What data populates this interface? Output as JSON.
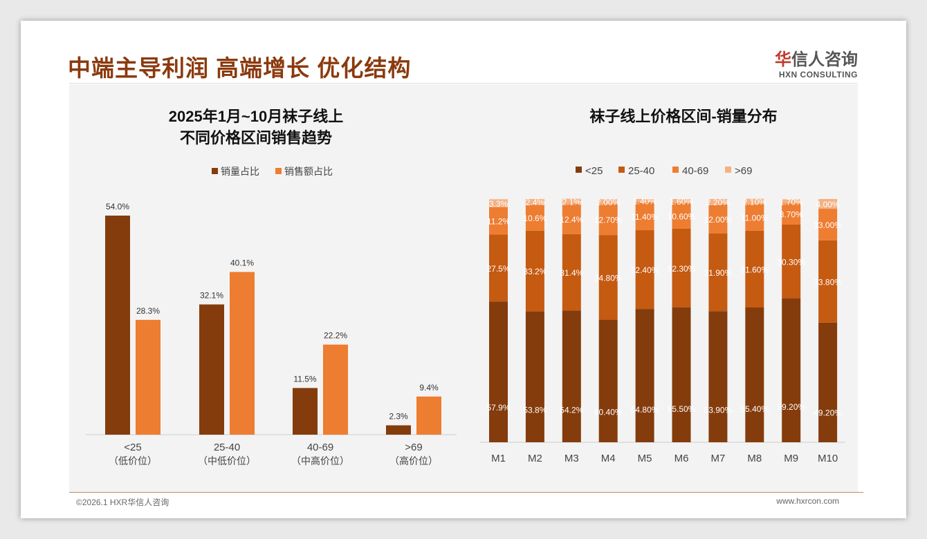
{
  "header": {
    "title": "中端主导利润 高端增长 优化结构",
    "logo_cn_mark": "华",
    "logo_cn": "信人咨询",
    "logo_en": "HXN CONSULTING"
  },
  "footer": {
    "copyright": "©2026.1 HXR华信人咨询",
    "url": "www.hxrcon.com"
  },
  "colors": {
    "dark": "#843c0c",
    "mid": "#c55a11",
    "light": "#ed7d31",
    "pale": "#f4b183"
  },
  "chart_data": [
    {
      "type": "bar",
      "title_line1": "2025年1月~10月袜子线上",
      "title_line2": "不同价格区间销售趋势",
      "categories": [
        "<25",
        "25-40",
        "40-69",
        ">69"
      ],
      "category_sub": [
        "（低价位）",
        "（中低价位）",
        "（中高价位）",
        "（高价位）"
      ],
      "series": [
        {
          "name": "销量占比",
          "values": [
            54.0,
            32.1,
            11.5,
            2.3
          ]
        },
        {
          "name": "销售额占比",
          "values": [
            28.3,
            40.1,
            22.2,
            9.4
          ]
        }
      ],
      "ylim": [
        0,
        60
      ],
      "legend": "top"
    },
    {
      "type": "bar",
      "stacked": true,
      "title": "袜子线上价格区间-销量分布",
      "categories": [
        "M1",
        "M2",
        "M3",
        "M4",
        "M5",
        "M6",
        "M7",
        "M8",
        "M9",
        "M10"
      ],
      "series": [
        {
          "name": "<25",
          "labels": [
            "57.9%",
            "53.8%",
            "54.2%",
            "50.40%",
            "54.80%",
            "55.50%",
            "53.90%",
            "55.40%",
            "59.20%",
            "49.20%"
          ],
          "values": [
            57.9,
            53.8,
            54.2,
            50.4,
            54.8,
            55.5,
            53.9,
            55.4,
            59.2,
            49.2
          ]
        },
        {
          "name": "25-40",
          "labels": [
            "27.5%",
            "33.2%",
            "31.4%",
            "34.80%",
            "32.40%",
            "32.30%",
            "31.90%",
            "31.60%",
            "30.30%",
            "33.80%"
          ],
          "values": [
            27.5,
            33.2,
            31.4,
            34.8,
            32.4,
            32.3,
            31.9,
            31.6,
            30.3,
            33.8
          ]
        },
        {
          "name": "40-69",
          "labels": [
            "11.2%",
            "10.6%",
            "12.4%",
            "12.70%",
            "11.40%",
            "10.60%",
            "12.00%",
            "11.00%",
            "8.70%",
            "13.00%"
          ],
          "values": [
            11.2,
            10.6,
            12.4,
            12.7,
            11.4,
            10.6,
            12.0,
            11.0,
            8.7,
            13.0
          ]
        },
        {
          "name": ">69",
          "labels": [
            "3.3%",
            "2.4%",
            "2.1%",
            "2.00%",
            "1.40%",
            "1.60%",
            "2.20%",
            "2.10%",
            "1.70%",
            "4.00%"
          ],
          "values": [
            3.3,
            2.4,
            2.1,
            2.0,
            1.4,
            1.6,
            2.2,
            2.1,
            1.7,
            4.0
          ]
        }
      ],
      "ylim": [
        0,
        100
      ],
      "legend": "top"
    }
  ]
}
